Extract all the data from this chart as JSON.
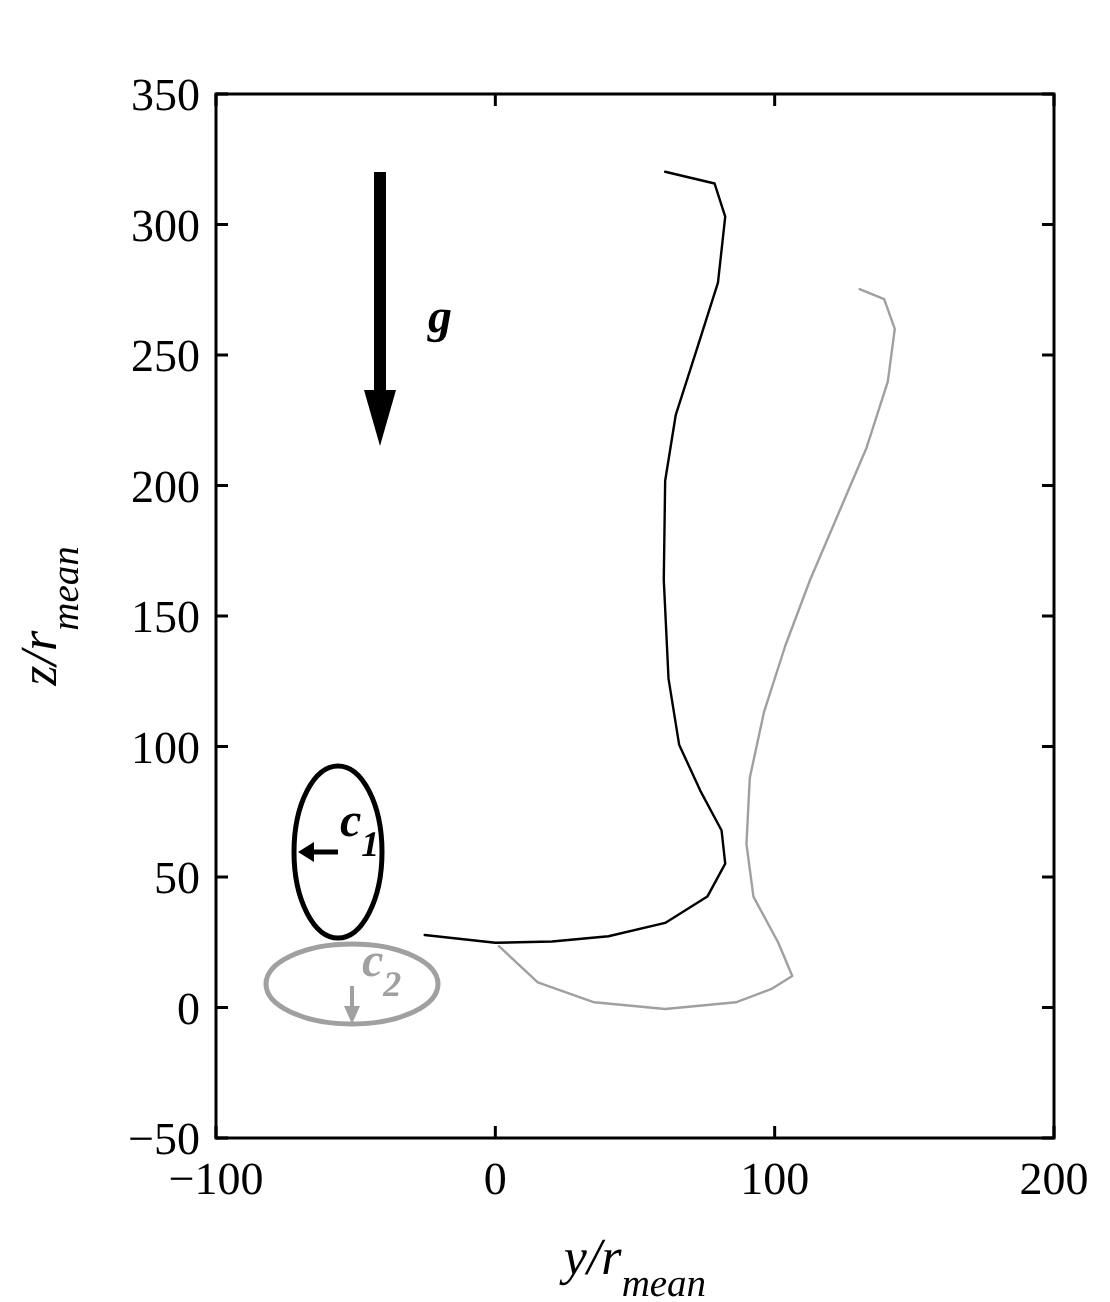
{
  "chart_data": {
    "type": "line",
    "xlabel": "y/r$_{mean}$",
    "ylabel": "z/r$_{mean}$",
    "xlim": [
      -100,
      200
    ],
    "xticks": [
      -100,
      0,
      100,
      200
    ],
    "ylim": [
      -50,
      350
    ],
    "yticks": [
      -50,
      0,
      50,
      100,
      150,
      200,
      250,
      300,
      350
    ],
    "grid": false,
    "marker": "none",
    "line_style": "solid",
    "series": [
      {
        "color": "#000000",
        "x": [
          60.8,
          78.5,
          82.3,
          79.7,
          72.2,
          64.6,
          60.8,
          60.3,
          62,
          65.8,
          73.4,
          81,
          82.3,
          75.9,
          60.8,
          40.5,
          20.3,
          0,
          -25.3
        ],
        "values": [
          320.2,
          315.7,
          303,
          277.7,
          252.4,
          227.1,
          201.8,
          163.9,
          126,
          100.7,
          83,
          67.8,
          55.1,
          42.5,
          32.4,
          27.3,
          25.3,
          24.8,
          27.8
        ]
      },
      {
        "color": "#a0a0a0",
        "x": [
          130.4,
          139.2,
          143,
          140.5,
          132.9,
          122.8,
          112.7,
          103.8,
          96.2,
          91.1,
          89.9,
          92.4,
          101.3,
          106.3,
          98.7,
          86.1,
          60.8,
          35.4,
          15.2,
          1.3
        ],
        "values": [
          275.2,
          271.4,
          260,
          239.8,
          214.5,
          189.2,
          163.9,
          138.6,
          113.3,
          88,
          62.7,
          42.5,
          24.8,
          12.1,
          7,
          2,
          -0.6,
          2,
          9.6,
          23.5
        ]
      }
    ],
    "annotations": [
      "g",
      "c$_{1}$",
      "c$_{2}$"
    ]
  }
}
